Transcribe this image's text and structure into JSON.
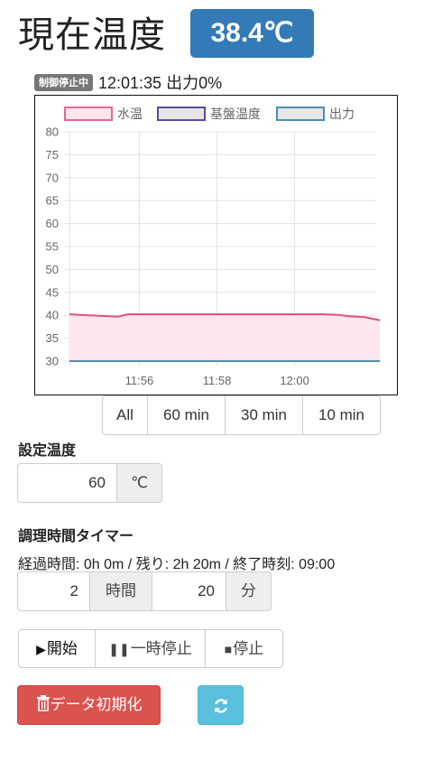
{
  "header": {
    "title": "現在温度",
    "current_temp": "38.4℃"
  },
  "status": {
    "badge": "制御停止中",
    "text": "12:01:35 出力0%"
  },
  "chart_data": {
    "type": "line",
    "legend": [
      {
        "name": "水温",
        "stroke": "#e9678e",
        "fill": "#fde6ec"
      },
      {
        "name": "基盤温度",
        "stroke": "#5c4a9e",
        "fill": "#e6e6e6"
      },
      {
        "name": "出力",
        "stroke": "#4e8db0",
        "fill": "#e6e6e6"
      }
    ],
    "yticks": [
      "80",
      "75",
      "70",
      "65",
      "60",
      "55",
      "50",
      "45",
      "40",
      "35",
      "30"
    ],
    "ylim": [
      30,
      80
    ],
    "xticks": [
      "11:56",
      "11:58",
      "12:00"
    ],
    "x_minutes": [
      0,
      0.5,
      1,
      1.25,
      1.5,
      2,
      2.5,
      3,
      3.5,
      4,
      4.5,
      5,
      5.5,
      6,
      6.5,
      6.9,
      7.2,
      7.6,
      8.0
    ],
    "series": [
      {
        "name": "水温",
        "values": [
          40.2,
          40.0,
          39.8,
          39.7,
          40.2,
          40.2,
          40.2,
          40.2,
          40.2,
          40.2,
          40.2,
          40.2,
          40.2,
          40.2,
          40.2,
          40.1,
          39.8,
          39.6,
          38.9
        ]
      },
      {
        "name": "出力",
        "values": [
          30,
          30,
          30,
          30,
          30,
          30,
          30,
          30,
          30,
          30,
          30,
          30,
          30,
          30,
          30,
          30,
          30,
          30,
          30
        ]
      }
    ],
    "x_tick_minutes": [
      1.8,
      3.8,
      5.8
    ],
    "x_range": [
      0,
      7.9
    ]
  },
  "range_buttons": [
    "All",
    "60 min",
    "30 min",
    "10 min"
  ],
  "setpoint": {
    "label": "設定温度",
    "value": "60",
    "unit": "℃"
  },
  "timer": {
    "label": "調理時間タイマー",
    "elapsed": "経過時間: 0h 0m / 残り: 2h 20m / 終了時刻: 09:00",
    "hours_value": "2",
    "hours_unit": "時間",
    "minutes_value": "20",
    "minutes_unit": "分"
  },
  "controls": {
    "start": "開始",
    "pause": "一時停止",
    "stop": "停止"
  },
  "actions": {
    "reset_data": "データ初期化"
  }
}
